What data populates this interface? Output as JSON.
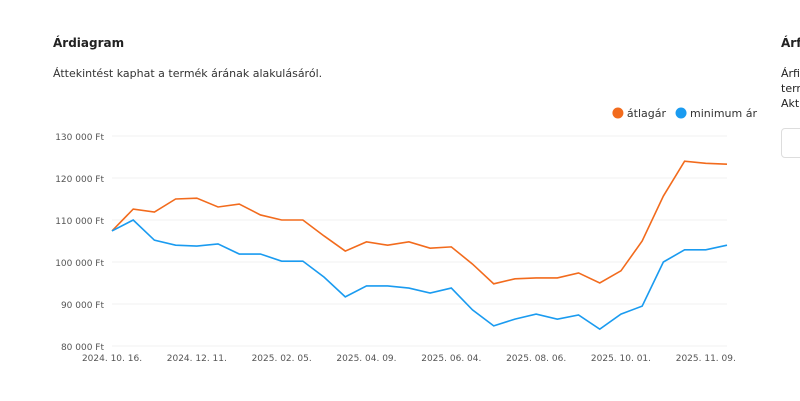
{
  "header": {
    "title": "Árdiagram",
    "subtitle": "Áttekintést kaphat a termék árának alakulásáról."
  },
  "side": {
    "title": "Árf",
    "lines": [
      "Árfi",
      "term",
      "Aktu"
    ]
  },
  "chart_data": {
    "type": "line",
    "categories": [
      "2024. 10. 16.",
      null,
      null,
      null,
      "2024. 12. 11.",
      null,
      null,
      null,
      "2025. 02. 05.",
      null,
      null,
      null,
      "2025. 04. 09.",
      null,
      null,
      null,
      "2025. 06. 04.",
      null,
      null,
      null,
      "2025. 08. 06.",
      null,
      null,
      null,
      "2025. 10. 01.",
      null,
      null,
      null,
      "2025. 11. 09.",
      null
    ],
    "series": [
      {
        "name": "átlagár",
        "color": "#f26b1d",
        "values": [
          107400,
          112600,
          111900,
          115000,
          115200,
          113100,
          113800,
          111200,
          110000,
          110000,
          106200,
          102600,
          104800,
          104000,
          104800,
          103300,
          103600,
          99500,
          94800,
          96000,
          96200,
          96200,
          97400,
          95000,
          97900,
          105000,
          115700,
          124000,
          123500,
          123300
        ]
      },
      {
        "name": "minimum ár",
        "color": "#1a9bf0",
        "values": [
          107400,
          110000,
          105200,
          104000,
          103800,
          104300,
          101900,
          101900,
          100200,
          100200,
          96400,
          91700,
          94300,
          94300,
          93800,
          92600,
          93800,
          88600,
          84800,
          86400,
          87600,
          86400,
          87400,
          84000,
          87600,
          89500,
          100000,
          102900,
          102900,
          104000
        ]
      }
    ],
    "ylim": [
      80000,
      130000
    ],
    "yticks": [
      {
        "value": 80000,
        "label": "80 000 Ft"
      },
      {
        "value": 90000,
        "label": "90 000 Ft"
      },
      {
        "value": 100000,
        "label": "100 000 Ft"
      },
      {
        "value": 110000,
        "label": "110 000 Ft"
      },
      {
        "value": 120000,
        "label": "120 000 Ft"
      },
      {
        "value": 130000,
        "label": "130 000 Ft"
      }
    ],
    "grid": true,
    "legend": "top-right"
  }
}
